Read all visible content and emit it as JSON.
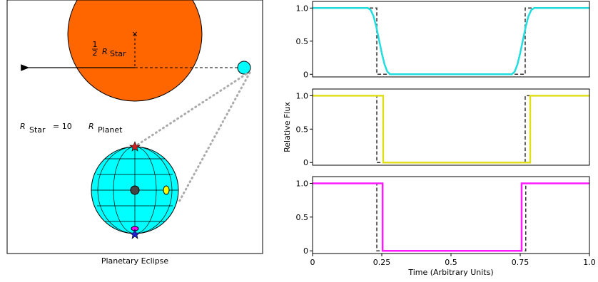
{
  "diagram": {
    "half_label": {
      "num": "1",
      "den": "2",
      "symbol": "R",
      "sub": "Star"
    },
    "equation": {
      "lhs": "R",
      "lhs_sub": "Star",
      "op": "= 10",
      "rhs": "R",
      "rhs_sub": "Planet"
    },
    "caption": "Planetary Eclipse"
  },
  "chart_data": [
    {
      "type": "line",
      "xlim": [
        0,
        1
      ],
      "ylim": [
        -0.04,
        1.1
      ],
      "yticks": [
        0,
        0.5,
        {
          "value": 1,
          "label": "1.0"
        }
      ],
      "series": [
        {
          "color": "#333333",
          "style": "dashed",
          "x": [
            0,
            0.232,
            0.232,
            0.768,
            0.768,
            1
          ],
          "values": [
            1,
            1,
            0,
            0,
            1,
            1
          ]
        },
        {
          "color": "#22dde0",
          "style": "solid",
          "x": [
            0,
            0.2,
            0.21,
            0.22,
            0.23,
            0.24,
            0.25,
            0.26,
            0.27,
            0.28,
            0.72,
            0.73,
            0.74,
            0.75,
            0.76,
            0.77,
            0.78,
            0.79,
            0.8,
            1
          ],
          "values": [
            1,
            1,
            0.97,
            0.88,
            0.72,
            0.52,
            0.32,
            0.15,
            0.04,
            0,
            0,
            0.04,
            0.15,
            0.32,
            0.52,
            0.72,
            0.88,
            0.97,
            1,
            1
          ]
        }
      ]
    },
    {
      "type": "line",
      "xlim": [
        0,
        1
      ],
      "ylim": [
        -0.04,
        1.1
      ],
      "ylabel": "Relative Flux",
      "yticks": [
        0,
        0.5,
        {
          "value": 1,
          "label": "1.0"
        }
      ],
      "series": [
        {
          "color": "#333333",
          "style": "dashed",
          "x": [
            0,
            0.232,
            0.232,
            0.768,
            0.768,
            1
          ],
          "values": [
            1,
            1,
            0,
            0,
            1,
            1
          ]
        },
        {
          "color": "#e0e01a",
          "style": "solid",
          "x": [
            0,
            0.255,
            0.255,
            0.786,
            0.786,
            1
          ],
          "values": [
            1,
            1,
            0,
            0,
            1,
            1
          ]
        }
      ]
    },
    {
      "type": "line",
      "xlim": [
        0,
        1
      ],
      "ylim": [
        -0.04,
        1.1
      ],
      "xlabel": "Time (Arbitrary Units)",
      "xticks": [
        0,
        0.25,
        0.5,
        0.75,
        {
          "value": 1,
          "label": "1.0"
        }
      ],
      "yticks": [
        0,
        0.5,
        {
          "value": 1,
          "label": "1.0"
        }
      ],
      "series": [
        {
          "color": "#333333",
          "style": "dashed",
          "x": [
            0,
            0.232,
            0.232,
            0.77,
            0.77,
            1
          ],
          "values": [
            1,
            1,
            0,
            0,
            1,
            1
          ]
        },
        {
          "color": "#ff1aff",
          "style": "solid",
          "x": [
            0,
            0.253,
            0.253,
            0.755,
            0.755,
            1
          ],
          "values": [
            1,
            1,
            0,
            0,
            1,
            1
          ]
        }
      ]
    }
  ]
}
